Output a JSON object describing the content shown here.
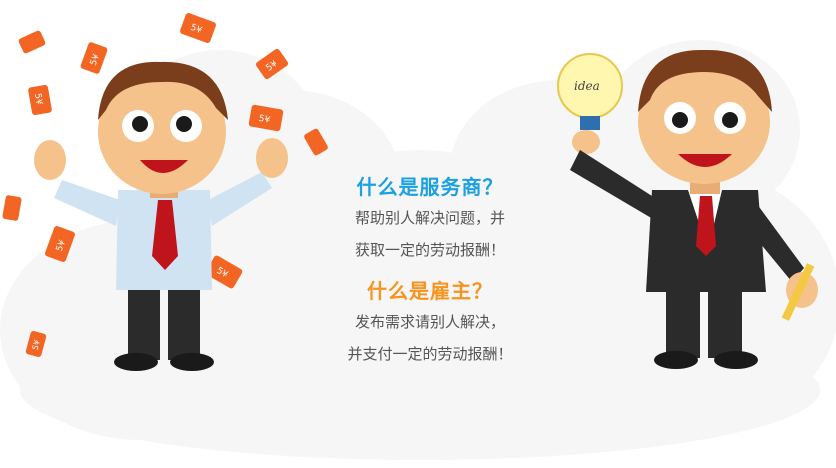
{
  "service_provider": {
    "title": "什么是服务商？",
    "line1": "帮助别人解决问题，并",
    "line2": "获取一定的劳动报酬！"
  },
  "employer": {
    "title": "什么是雇主？",
    "line1": "发布需求请别人解决，",
    "line2": "并支付一定的劳动报酬！"
  },
  "illustration": {
    "money_note_label": "5¥",
    "bulb_label": "idea"
  },
  "colors": {
    "blue_title": "#1ba1e2",
    "orange_title": "#f7931e",
    "money_orange": "#f26522",
    "tie_red": "#c0141c",
    "skin": "#f4c28a",
    "hair": "#7a3e1c"
  }
}
